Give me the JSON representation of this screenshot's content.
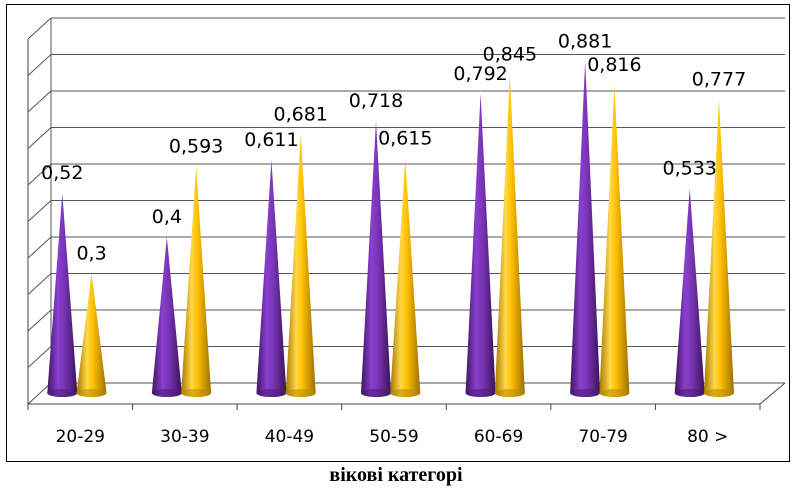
{
  "chart_data": {
    "type": "bar",
    "bar_shape": "cone",
    "style": "3d",
    "categories": [
      "20-29",
      "30-39",
      "40-49",
      "50-59",
      "60-69",
      "70-79",
      "80 >"
    ],
    "series": [
      {
        "values": [
          0.52,
          0.4,
          0.611,
          0.718,
          0.792,
          0.881,
          0.533
        ],
        "labels": [
          "0,52",
          "0,4",
          "0,611",
          "0,718",
          "0,792",
          "0,881",
          "0,533"
        ],
        "color": "#7030A0"
      },
      {
        "values": [
          0.3,
          0.593,
          0.681,
          0.615,
          0.845,
          0.816,
          0.777
        ],
        "labels": [
          "0,3",
          "0,593",
          "0,681",
          "0,615",
          "0,845",
          "0,816",
          "0,777"
        ],
        "color": "#FFC000"
      }
    ],
    "xlabel": "вікові категорі",
    "ylim": [
      0,
      1
    ],
    "grid": true,
    "legend": "none",
    "y_tick_labels": "none"
  }
}
